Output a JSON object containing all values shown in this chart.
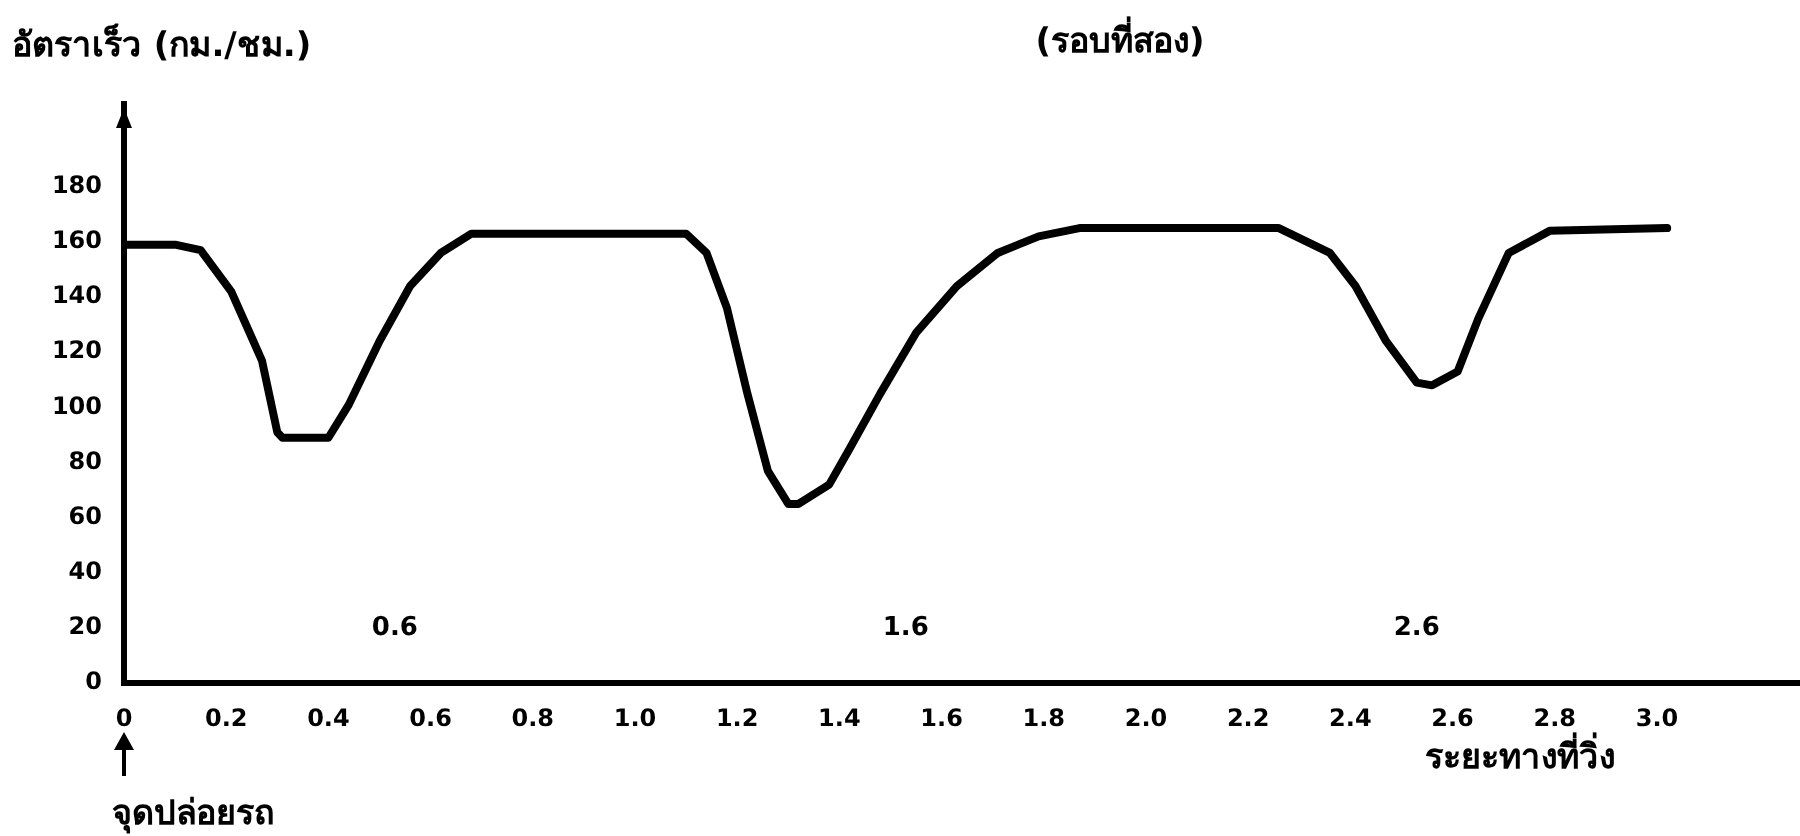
{
  "chart_data": {
    "type": "line",
    "title": "(รอบที่สอง)",
    "ylabel": "อัตราเร็ว (กม./ชม.)",
    "xlabel": "ระยะทางที่วิ่ง",
    "x": [
      0,
      0.1,
      0.15,
      0.21,
      0.27,
      0.3,
      0.31,
      0.4,
      0.44,
      0.5,
      0.56,
      0.62,
      0.68,
      1.1,
      1.14,
      1.18,
      1.22,
      1.26,
      1.3,
      1.32,
      1.38,
      1.42,
      1.48,
      1.55,
      1.63,
      1.71,
      1.79,
      1.87,
      2.26,
      2.36,
      2.41,
      2.47,
      2.53,
      2.56,
      2.61,
      2.65,
      2.71,
      2.79,
      3.02
    ],
    "series": [
      {
        "color": "#000000",
        "values": [
          159,
          159,
          157,
          142,
          117,
          91,
          89,
          89,
          101,
          124,
          144,
          156,
          163,
          163,
          156,
          136,
          105,
          77,
          65,
          65,
          72,
          85,
          105,
          127,
          144,
          156,
          162,
          165,
          165,
          156,
          144,
          124,
          109,
          108,
          113,
          132,
          156,
          164,
          165
        ]
      }
    ],
    "xlim": [
      0,
      3.28
    ],
    "xticks": [
      0,
      0.2,
      0.4,
      0.6,
      0.8,
      {
        "value": 1,
        "label": "1.0"
      },
      1.2,
      1.4,
      1.6,
      1.8,
      {
        "value": 2,
        "label": "2.0"
      },
      2.2,
      2.4,
      2.6,
      2.8,
      {
        "value": 3,
        "label": "3.0"
      }
    ],
    "ylim": [
      0,
      210
    ],
    "yticks": [
      0,
      20,
      40,
      60,
      80,
      100,
      120,
      140,
      160,
      180
    ],
    "grid": false,
    "legend": false,
    "marker": "none",
    "line_style": "solid",
    "annotations": [
      "0.6",
      "1.6",
      "2.6",
      "จุดปล่อยรถ"
    ]
  }
}
